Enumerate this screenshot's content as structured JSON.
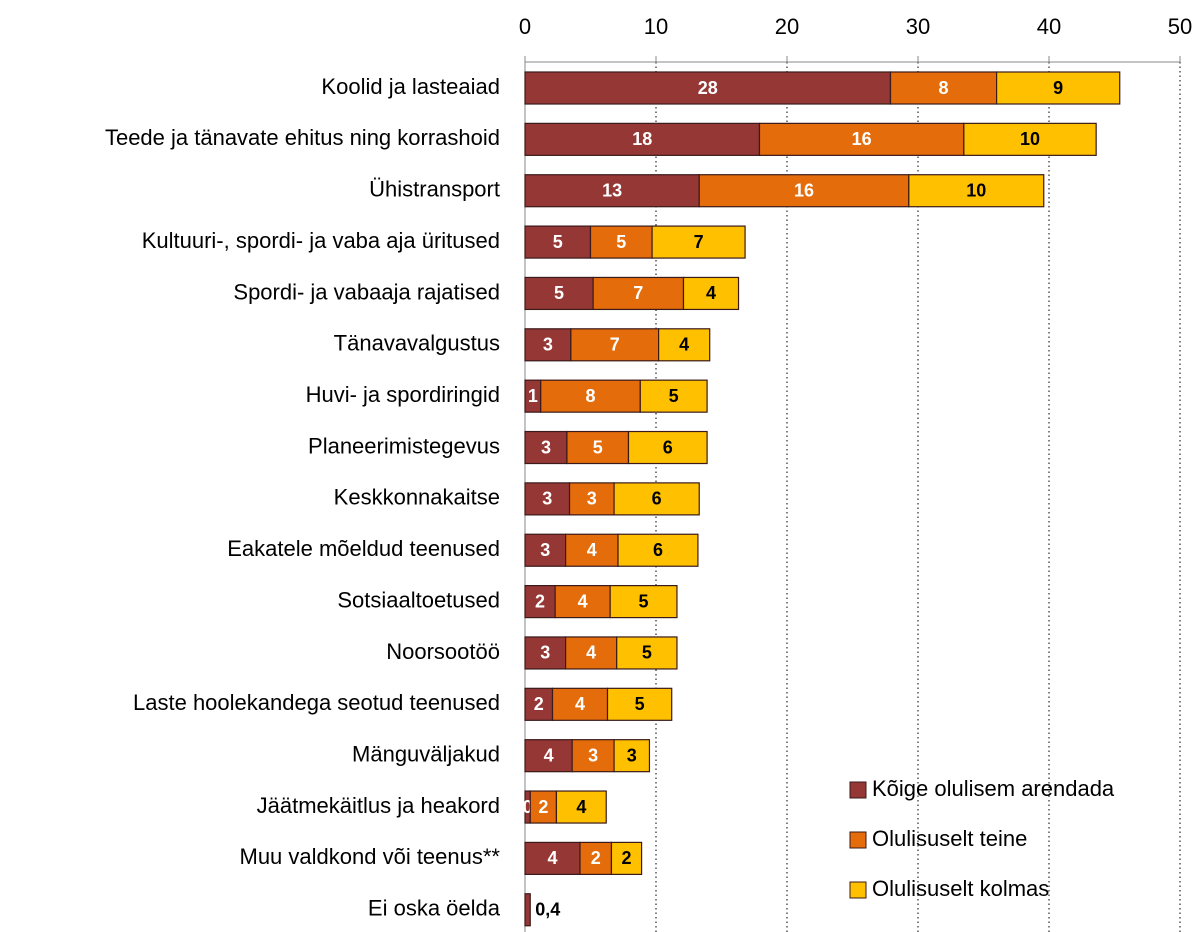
{
  "chart_data": {
    "type": "stacked-barh",
    "categories": [
      "Koolid ja lasteaiad",
      "Teede ja tänavate ehitus ning korrashoid",
      "Ühistransport",
      "Kultuuri-, spordi- ja vaba aja üritused",
      "Spordi- ja vabaaja rajatised",
      "Tänavavalgustus",
      "Huvi-  ja spordiringid",
      "Planeerimistegevus",
      "Keskkonnakaitse",
      "Eakatele mõeldud teenused",
      "Sotsiaaltoetused",
      "Noorsootöö",
      "Laste hoolekandega seotud teenused",
      "Mänguväljakud",
      "Jäätmekäitlus ja heakord",
      "Muu valdkond või teenus**",
      "Ei oska öelda"
    ],
    "series": [
      {
        "name": "Kõige olulisem arendada",
        "color": "#953735",
        "values": [
          27.9,
          17.9,
          13.3,
          5.0,
          5.2,
          3.5,
          1.2,
          3.2,
          3.4,
          3.1,
          2.3,
          3.1,
          2.1,
          3.6,
          0.4,
          4.2,
          0.4
        ],
        "value_labels": [
          "28",
          "18",
          "13",
          "5",
          "5",
          "3",
          "1",
          "3",
          "3",
          "3",
          "2",
          "3",
          "2",
          "4",
          "0",
          "4",
          "0,4"
        ]
      },
      {
        "name": "Olulisuselt teine",
        "color": "#e46c0a",
        "values": [
          8.1,
          15.6,
          16.0,
          4.7,
          6.9,
          6.7,
          7.6,
          4.7,
          3.4,
          4.0,
          4.2,
          3.9,
          4.2,
          3.2,
          2.0,
          2.4,
          null
        ],
        "value_labels": [
          "8",
          "16",
          "16",
          "5",
          "7",
          "7",
          "8",
          "5",
          "3",
          "4",
          "4",
          "4",
          "4",
          "3",
          "2",
          "2",
          null
        ]
      },
      {
        "name": "Olulisuselt kolmas",
        "color": "#ffc000",
        "values": [
          9.4,
          10.1,
          10.3,
          7.1,
          4.2,
          3.9,
          5.1,
          6.0,
          6.5,
          6.1,
          5.1,
          4.6,
          4.9,
          2.7,
          3.8,
          2.3,
          null
        ],
        "value_labels": [
          "9",
          "10",
          "10",
          "7",
          "4",
          "4",
          "5",
          "6",
          "6",
          "6",
          "5",
          "5",
          "5",
          "3",
          "4",
          "2",
          null
        ]
      }
    ],
    "xlim": [
      0,
      50
    ],
    "xticks": [
      0,
      10,
      20,
      30,
      40,
      50
    ],
    "grid": true,
    "legend": "lower right"
  }
}
